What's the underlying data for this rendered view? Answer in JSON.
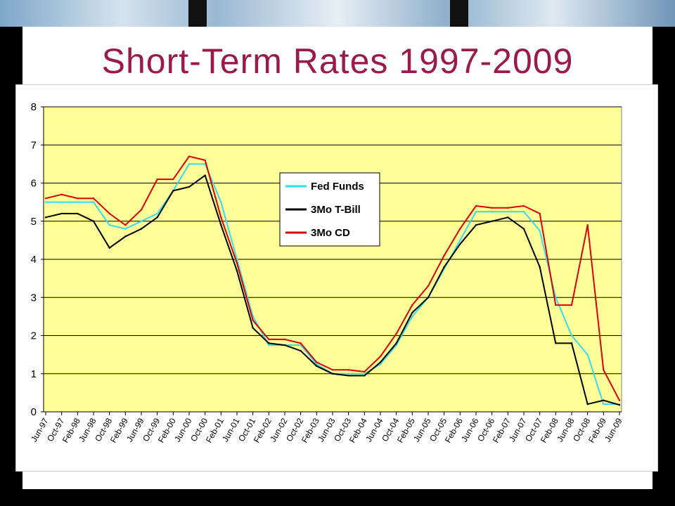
{
  "title": "Short-Term Rates 1997-2009",
  "chart_data": {
    "type": "line",
    "categories": [
      "Jun-97",
      "Oct-97",
      "Feb-98",
      "Jun-98",
      "Oct-98",
      "Feb-99",
      "Jun-99",
      "Oct-99",
      "Feb-00",
      "Jun-00",
      "Oct-00",
      "Feb-01",
      "Jun-01",
      "Oct-01",
      "Feb-02",
      "Jun-02",
      "Oct-02",
      "Feb-03",
      "Jun-03",
      "Oct-03",
      "Feb-04",
      "Jun-04",
      "Oct-04",
      "Feb-05",
      "Jun-05",
      "Oct-05",
      "Feb-06",
      "Jun-06",
      "Oct-06",
      "Feb-07",
      "Jun-07",
      "Oct-07",
      "Feb-08",
      "Jun-08",
      "Oct-08",
      "Feb-09",
      "Jun-09"
    ],
    "ylim": [
      0,
      8
    ],
    "yticks": [
      "0",
      "1",
      "2",
      "3",
      "4",
      "5",
      "6",
      "7",
      "8"
    ],
    "grid": true,
    "legend_position": "center-top",
    "background": "#ffff99",
    "series": [
      {
        "name": "Fed Funds",
        "color": "#33ddee",
        "values": [
          5.5,
          5.5,
          5.5,
          5.5,
          4.9,
          4.8,
          5.0,
          5.2,
          5.8,
          6.5,
          6.5,
          5.5,
          4.0,
          2.5,
          1.75,
          1.75,
          1.75,
          1.25,
          1.0,
          1.0,
          1.0,
          1.25,
          1.75,
          2.5,
          3.0,
          3.75,
          4.5,
          5.25,
          5.25,
          5.25,
          5.25,
          4.75,
          3.0,
          2.0,
          1.5,
          0.2,
          0.2
        ]
      },
      {
        "name": "3Mo T-Bill",
        "color": "#000000",
        "values": [
          5.1,
          5.2,
          5.2,
          5.0,
          4.3,
          4.6,
          4.8,
          5.1,
          5.8,
          5.9,
          6.2,
          4.9,
          3.7,
          2.2,
          1.8,
          1.75,
          1.6,
          1.2,
          1.0,
          0.95,
          0.95,
          1.3,
          1.8,
          2.6,
          3.0,
          3.8,
          4.4,
          4.9,
          5.0,
          5.1,
          4.8,
          3.8,
          1.8,
          1.8,
          0.2,
          0.3,
          0.18
        ]
      },
      {
        "name": "3Mo CD",
        "color": "#dd0000",
        "values": [
          5.6,
          5.7,
          5.6,
          5.6,
          5.2,
          4.9,
          5.3,
          6.1,
          6.1,
          6.7,
          6.6,
          5.1,
          3.9,
          2.4,
          1.9,
          1.9,
          1.8,
          1.3,
          1.1,
          1.1,
          1.05,
          1.45,
          2.05,
          2.8,
          3.3,
          4.1,
          4.8,
          5.4,
          5.35,
          5.35,
          5.4,
          5.2,
          2.8,
          2.8,
          4.9,
          1.1,
          0.3
        ]
      }
    ]
  }
}
